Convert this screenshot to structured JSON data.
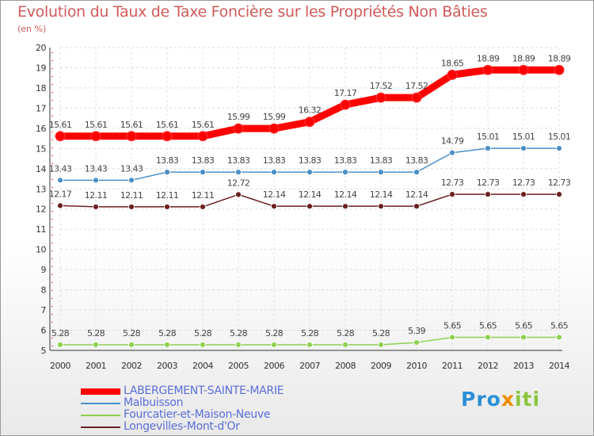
{
  "chart_data": {
    "type": "line",
    "title": "Evolution du Taux de Taxe Foncière sur les Propriétés Non Bâties",
    "subtitle": "(en %)",
    "x": [
      "2000",
      "2001",
      "2002",
      "2003",
      "2004",
      "2005",
      "2006",
      "2007",
      "2008",
      "2009",
      "2010",
      "2011",
      "2012",
      "2013",
      "2014"
    ],
    "ylim": [
      5,
      20
    ],
    "yticks": [
      5,
      6,
      7,
      8,
      9,
      10,
      11,
      12,
      13,
      14,
      15,
      16,
      17,
      18,
      19,
      20
    ],
    "grid": true,
    "legend_position": "bottom-left",
    "series": [
      {
        "name": "LABERGEMENT-SAINTE-MARIE",
        "color": "#ff0000",
        "values": [
          15.61,
          15.61,
          15.61,
          15.61,
          15.61,
          15.99,
          15.99,
          16.32,
          17.17,
          17.52,
          17.52,
          18.65,
          18.89,
          18.89,
          18.89
        ],
        "labels": [
          "15.61",
          "15.61",
          "15.61",
          "15.61",
          "15.61",
          "15.99",
          "15.99",
          "16.32",
          "17.17",
          "17.52",
          "17.52",
          "18.65",
          "18.89",
          "18.89",
          "18.89"
        ]
      },
      {
        "name": "Malbuisson",
        "color": "#4a90c8",
        "values": [
          13.43,
          13.43,
          13.43,
          13.83,
          13.83,
          13.83,
          13.83,
          13.83,
          13.83,
          13.83,
          13.83,
          14.79,
          15.01,
          15.01,
          15.01
        ],
        "labels": [
          "13.43",
          "13.43",
          "13.43",
          "13.83",
          "13.83",
          "13.83",
          "13.83",
          "13.83",
          "13.83",
          "13.83",
          "13.83",
          "14.79",
          "15.01",
          "15.01",
          "15.01"
        ]
      },
      {
        "name": "Fourcatier-et-Maison-Neuve",
        "color": "#8fd14f",
        "values": [
          5.28,
          5.28,
          5.28,
          5.28,
          5.28,
          5.28,
          5.28,
          5.28,
          5.28,
          5.28,
          5.39,
          5.65,
          5.65,
          5.65,
          5.65
        ],
        "labels": [
          "5.28",
          "5.28",
          "5.28",
          "5.28",
          "5.28",
          "5.28",
          "5.28",
          "5.28",
          "5.28",
          "5.28",
          "5.39",
          "5.65",
          "5.65",
          "5.65",
          "5.65"
        ]
      },
      {
        "name": "Longevilles-Mont-d'Or",
        "color": "#6b1f1f",
        "values": [
          12.17,
          12.11,
          12.11,
          12.11,
          12.11,
          12.72,
          12.14,
          12.14,
          12.14,
          12.14,
          12.14,
          12.73,
          12.73,
          12.73,
          12.73
        ],
        "labels": [
          "12.17",
          "12.11",
          "12.11",
          "12.11",
          "12.11",
          "12.72",
          "12.14",
          "12.14",
          "12.14",
          "12.14",
          "12.14",
          "12.73",
          "12.73",
          "12.73",
          "12.73"
        ]
      }
    ]
  },
  "logo": {
    "text": "Proxiti"
  }
}
